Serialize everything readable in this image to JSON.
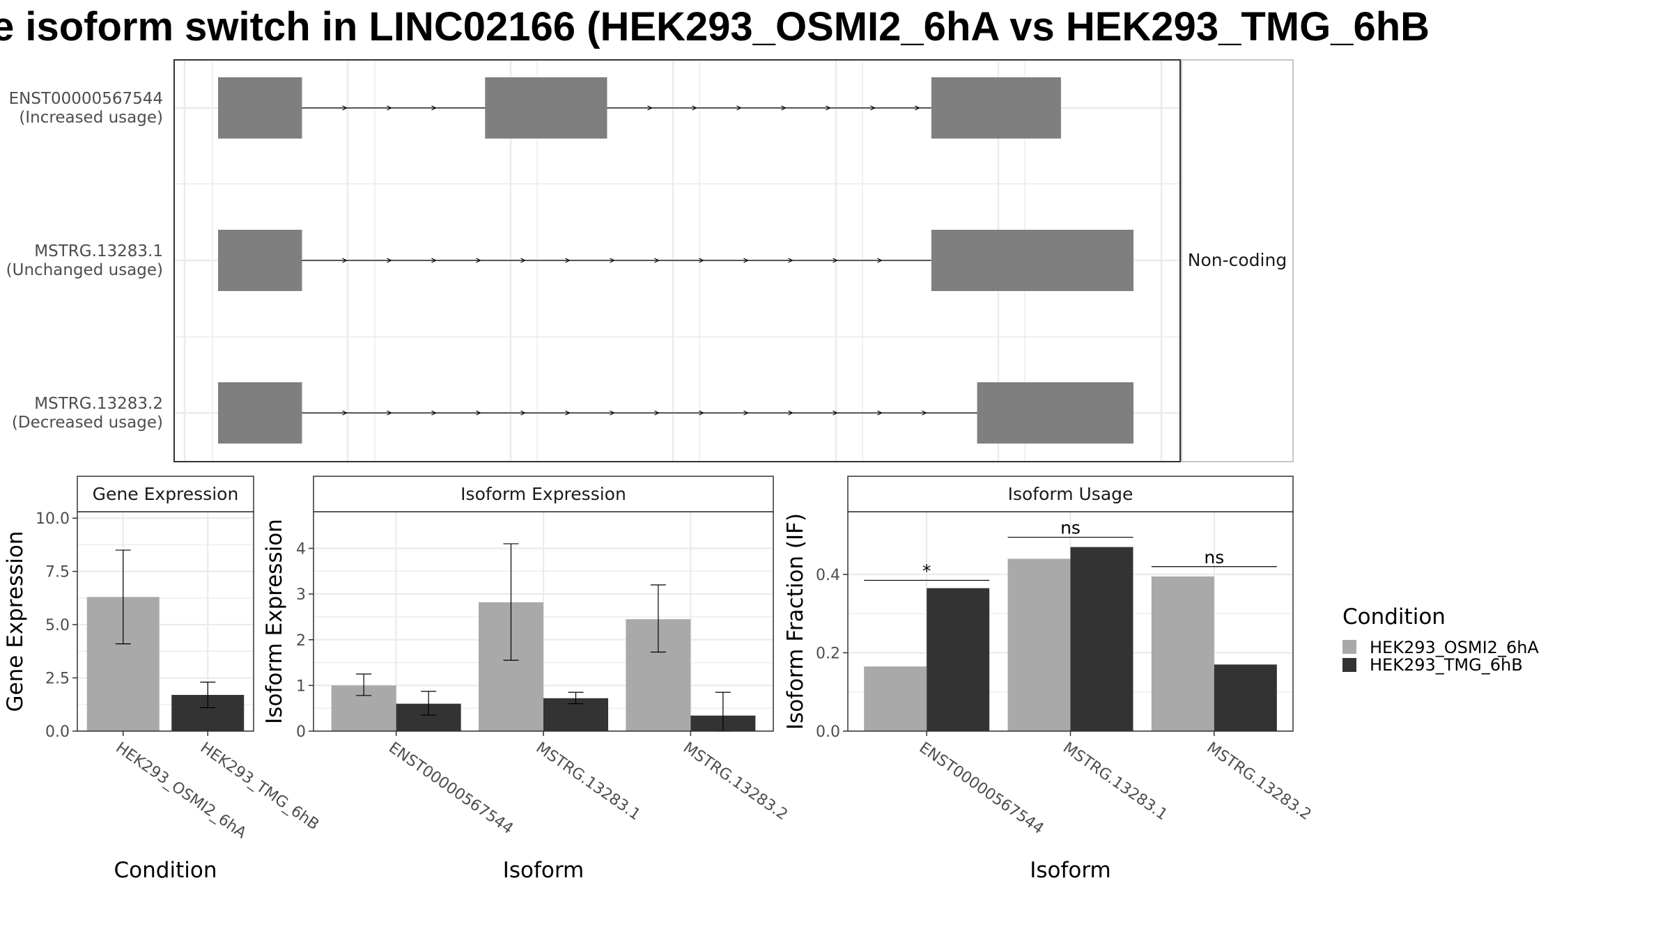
{
  "title": "e isoform switch in LINC02166 (HEK293_OSMI2_6hA vs HEK293_TMG_6hB",
  "colors": {
    "osmi": "#a9a9a9",
    "tmg": "#333333",
    "exon": "#7f7f7f",
    "grid": "#ebebeb",
    "panel_border": "#333333",
    "strip_border": "#b3b3b3"
  },
  "chart_data": [
    {
      "type": "gene-structure",
      "strip_label": "Non-coding",
      "transcripts": [
        {
          "id": "ENST00000567544",
          "usage": "(Increased usage)",
          "exons": [
            [
              0.0,
              0.0917
            ],
            [
              0.2917,
              0.425
            ],
            [
              0.7792,
              0.9208
            ]
          ]
        },
        {
          "id": "MSTRG.13283.1",
          "usage": "(Unchanged usage)",
          "exons": [
            [
              0.0,
              0.0917
            ],
            [
              0.7792,
              1.0
            ]
          ]
        },
        {
          "id": "MSTRG.13283.2",
          "usage": "(Decreased usage)",
          "exons": [
            [
              0.0,
              0.0917
            ],
            [
              0.8292,
              1.0
            ]
          ]
        }
      ]
    },
    {
      "type": "bar",
      "title": "Gene Expression",
      "xlabel": "Condition",
      "ylabel": "Gene Expression",
      "ylim": [
        0,
        10.3
      ],
      "yticks": [
        "0.0",
        "2.5",
        "5.0",
        "7.5",
        "10.0"
      ],
      "categories": [
        "HEK293_OSMI2_6hA",
        "HEK293_TMG_6hB"
      ],
      "values": [
        6.3,
        1.7
      ],
      "errors": [
        [
          4.1,
          8.5
        ],
        [
          1.1,
          2.3
        ]
      ]
    },
    {
      "type": "bar",
      "title": "Isoform Expression",
      "xlabel": "Isoform",
      "ylabel": "Isoform Expression",
      "ylim": [
        0,
        4.8
      ],
      "yticks": [
        "0",
        "1",
        "2",
        "3",
        "4"
      ],
      "categories": [
        "ENST00000567544",
        "MSTRG.13283.1",
        "MSTRG.13283.2"
      ],
      "series": [
        {
          "name": "HEK293_OSMI2_6hA",
          "values": [
            1.0,
            2.82,
            2.45
          ],
          "errors": [
            [
              0.78,
              1.25
            ],
            [
              1.55,
              4.1
            ],
            [
              1.73,
              3.2
            ]
          ]
        },
        {
          "name": "HEK293_TMG_6hB",
          "values": [
            0.6,
            0.72,
            0.34
          ],
          "errors": [
            [
              0.35,
              0.87
            ],
            [
              0.6,
              0.85
            ],
            [
              0.0,
              0.85
            ]
          ]
        }
      ]
    },
    {
      "type": "bar",
      "title": "Isoform Usage",
      "xlabel": "Isoform",
      "ylabel": "Isoform Fraction (IF)",
      "ylim": [
        0,
        0.56
      ],
      "yticks": [
        "0.0",
        "0.2",
        "0.4"
      ],
      "categories": [
        "ENST00000567544",
        "MSTRG.13283.1",
        "MSTRG.13283.2"
      ],
      "series": [
        {
          "name": "HEK293_OSMI2_6hA",
          "values": [
            0.165,
            0.44,
            0.395
          ]
        },
        {
          "name": "HEK293_TMG_6hB",
          "values": [
            0.365,
            0.47,
            0.17
          ]
        }
      ],
      "significance": [
        "*",
        "ns",
        "ns"
      ],
      "sig_y": [
        0.385,
        0.495,
        0.42
      ]
    }
  ],
  "legend": {
    "title": "Condition",
    "items": [
      "HEK293_OSMI2_6hA",
      "HEK293_TMG_6hB"
    ]
  }
}
